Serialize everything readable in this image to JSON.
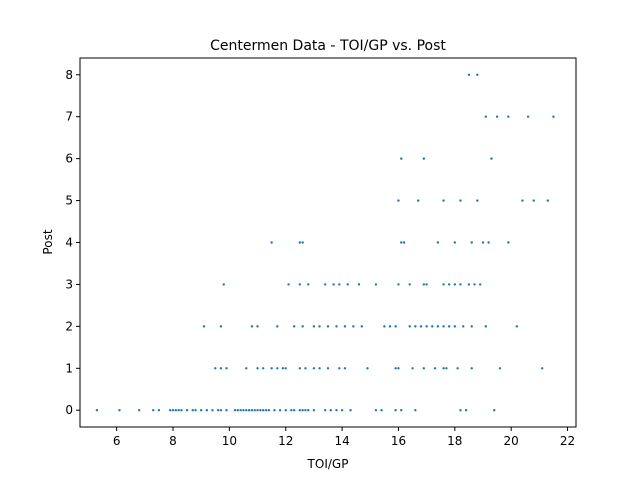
{
  "chart_data": {
    "type": "scatter",
    "title": "Centermen Data - TOI/GP vs. Post",
    "xlabel": "TOI/GP",
    "ylabel": "Post",
    "xlim": [
      4.7,
      22.3
    ],
    "ylim": [
      -0.4,
      8.4
    ],
    "xticks": [
      "6",
      "8",
      "10",
      "12",
      "14",
      "16",
      "18",
      "20",
      "22"
    ],
    "yticks": [
      "0",
      "1",
      "2",
      "3",
      "4",
      "5",
      "6",
      "7",
      "8"
    ],
    "xtick_values": [
      6,
      8,
      10,
      12,
      14,
      16,
      18,
      20,
      22
    ],
    "ytick_values": [
      0,
      1,
      2,
      3,
      4,
      5,
      6,
      7,
      8
    ],
    "grid": false,
    "marker_color": "#1f77b4",
    "points": [
      [
        5.3,
        0
      ],
      [
        6.1,
        0
      ],
      [
        6.8,
        0
      ],
      [
        7.3,
        0
      ],
      [
        7.5,
        0
      ],
      [
        7.9,
        0
      ],
      [
        8.0,
        0
      ],
      [
        8.1,
        0
      ],
      [
        8.2,
        0
      ],
      [
        8.3,
        0
      ],
      [
        8.5,
        0
      ],
      [
        8.7,
        0
      ],
      [
        8.8,
        0
      ],
      [
        9.0,
        0
      ],
      [
        9.2,
        0
      ],
      [
        9.4,
        0
      ],
      [
        9.6,
        0
      ],
      [
        9.7,
        0
      ],
      [
        9.9,
        0
      ],
      [
        10.2,
        0
      ],
      [
        10.3,
        0
      ],
      [
        10.4,
        0
      ],
      [
        10.5,
        0
      ],
      [
        10.6,
        0
      ],
      [
        10.7,
        0
      ],
      [
        10.8,
        0
      ],
      [
        10.9,
        0
      ],
      [
        11.0,
        0
      ],
      [
        11.1,
        0
      ],
      [
        11.2,
        0
      ],
      [
        11.3,
        0
      ],
      [
        11.4,
        0
      ],
      [
        11.6,
        0
      ],
      [
        11.8,
        0
      ],
      [
        12.0,
        0
      ],
      [
        12.2,
        0
      ],
      [
        12.3,
        0
      ],
      [
        12.5,
        0
      ],
      [
        12.6,
        0
      ],
      [
        12.7,
        0
      ],
      [
        12.8,
        0
      ],
      [
        13.0,
        0
      ],
      [
        13.4,
        0
      ],
      [
        13.6,
        0
      ],
      [
        13.8,
        0
      ],
      [
        14.0,
        0
      ],
      [
        14.3,
        0
      ],
      [
        15.2,
        0
      ],
      [
        15.4,
        0
      ],
      [
        15.9,
        0
      ],
      [
        16.1,
        0
      ],
      [
        16.6,
        0
      ],
      [
        18.2,
        0
      ],
      [
        18.4,
        0
      ],
      [
        19.4,
        0
      ],
      [
        9.5,
        1
      ],
      [
        9.7,
        1
      ],
      [
        9.9,
        1
      ],
      [
        10.6,
        1
      ],
      [
        11.0,
        1
      ],
      [
        11.2,
        1
      ],
      [
        11.5,
        1
      ],
      [
        11.7,
        1
      ],
      [
        11.9,
        1
      ],
      [
        12.0,
        1
      ],
      [
        12.5,
        1
      ],
      [
        12.7,
        1
      ],
      [
        13.0,
        1
      ],
      [
        13.2,
        1
      ],
      [
        13.5,
        1
      ],
      [
        13.9,
        1
      ],
      [
        14.1,
        1
      ],
      [
        14.9,
        1
      ],
      [
        15.9,
        1
      ],
      [
        16.0,
        1
      ],
      [
        16.5,
        1
      ],
      [
        16.9,
        1
      ],
      [
        17.3,
        1
      ],
      [
        17.6,
        1
      ],
      [
        17.7,
        1
      ],
      [
        18.1,
        1
      ],
      [
        18.6,
        1
      ],
      [
        19.6,
        1
      ],
      [
        21.1,
        1
      ],
      [
        9.1,
        2
      ],
      [
        9.7,
        2
      ],
      [
        10.8,
        2
      ],
      [
        11.0,
        2
      ],
      [
        11.7,
        2
      ],
      [
        12.3,
        2
      ],
      [
        12.6,
        2
      ],
      [
        13.0,
        2
      ],
      [
        13.2,
        2
      ],
      [
        13.5,
        2
      ],
      [
        13.8,
        2
      ],
      [
        14.1,
        2
      ],
      [
        14.4,
        2
      ],
      [
        14.7,
        2
      ],
      [
        15.5,
        2
      ],
      [
        15.7,
        2
      ],
      [
        15.9,
        2
      ],
      [
        16.4,
        2
      ],
      [
        16.6,
        2
      ],
      [
        16.8,
        2
      ],
      [
        17.0,
        2
      ],
      [
        17.2,
        2
      ],
      [
        17.4,
        2
      ],
      [
        17.6,
        2
      ],
      [
        17.8,
        2
      ],
      [
        18.0,
        2
      ],
      [
        18.3,
        2
      ],
      [
        18.6,
        2
      ],
      [
        19.1,
        2
      ],
      [
        20.2,
        2
      ],
      [
        9.8,
        3
      ],
      [
        12.1,
        3
      ],
      [
        12.5,
        3
      ],
      [
        12.8,
        3
      ],
      [
        13.4,
        3
      ],
      [
        13.7,
        3
      ],
      [
        13.9,
        3
      ],
      [
        14.2,
        3
      ],
      [
        14.6,
        3
      ],
      [
        15.2,
        3
      ],
      [
        16.0,
        3
      ],
      [
        16.4,
        3
      ],
      [
        16.9,
        3
      ],
      [
        17.0,
        3
      ],
      [
        17.6,
        3
      ],
      [
        17.8,
        3
      ],
      [
        18.0,
        3
      ],
      [
        18.2,
        3
      ],
      [
        18.5,
        3
      ],
      [
        18.7,
        3
      ],
      [
        18.9,
        3
      ],
      [
        11.5,
        4
      ],
      [
        12.5,
        4
      ],
      [
        12.6,
        4
      ],
      [
        16.1,
        4
      ],
      [
        16.2,
        4
      ],
      [
        17.4,
        4
      ],
      [
        18.0,
        4
      ],
      [
        18.6,
        4
      ],
      [
        19.0,
        4
      ],
      [
        19.2,
        4
      ],
      [
        19.9,
        4
      ],
      [
        16.0,
        5
      ],
      [
        16.7,
        5
      ],
      [
        17.6,
        5
      ],
      [
        18.2,
        5
      ],
      [
        18.8,
        5
      ],
      [
        20.4,
        5
      ],
      [
        20.8,
        5
      ],
      [
        21.3,
        5
      ],
      [
        16.1,
        6
      ],
      [
        16.9,
        6
      ],
      [
        19.3,
        6
      ],
      [
        19.1,
        7
      ],
      [
        19.5,
        7
      ],
      [
        19.9,
        7
      ],
      [
        20.6,
        7
      ],
      [
        21.5,
        7
      ],
      [
        18.5,
        8
      ],
      [
        18.8,
        8
      ]
    ]
  }
}
